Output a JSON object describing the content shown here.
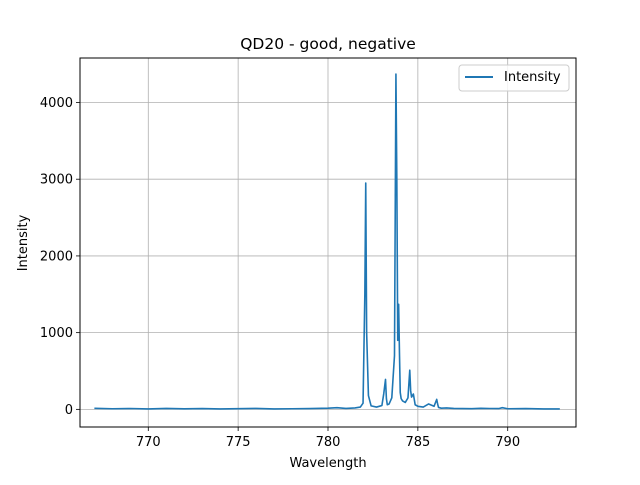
{
  "chart_data": {
    "type": "line",
    "title": "QD20 - good, negative",
    "xlabel": "Wavelength",
    "ylabel": "Intensity",
    "xlim": [
      766.2,
      793.8
    ],
    "ylim": [
      -230,
      4580
    ],
    "xticks": [
      770,
      775,
      780,
      785,
      790
    ],
    "yticks": [
      0,
      1000,
      2000,
      3000,
      4000
    ],
    "grid": true,
    "legend_position": "top-right",
    "series_color": "#1f77b4",
    "series": [
      {
        "name": "Intensity",
        "x": [
          767.0,
          768.0,
          769.0,
          770.0,
          771.0,
          772.0,
          773.0,
          774.0,
          775.0,
          776.0,
          777.0,
          778.0,
          779.0,
          780.0,
          780.5,
          781.0,
          781.5,
          781.8,
          781.95,
          782.05,
          782.1,
          782.15,
          782.25,
          782.4,
          782.7,
          783.0,
          783.1,
          783.2,
          783.25,
          783.3,
          783.4,
          783.55,
          783.7,
          783.78,
          783.83,
          783.88,
          783.93,
          783.98,
          784.02,
          784.07,
          784.15,
          784.3,
          784.45,
          784.55,
          784.6,
          784.65,
          784.75,
          784.85,
          785.0,
          785.3,
          785.6,
          785.9,
          786.05,
          786.1,
          786.15,
          786.3,
          786.6,
          787.0,
          787.5,
          788.0,
          788.5,
          789.0,
          789.5,
          789.7,
          790.0,
          791.0,
          792.0,
          792.9
        ],
        "values": [
          14,
          8,
          11,
          6,
          12,
          7,
          10,
          5,
          9,
          12,
          6,
          8,
          10,
          15,
          22,
          12,
          18,
          30,
          80,
          1500,
          2950,
          1000,
          180,
          45,
          30,
          50,
          200,
          390,
          140,
          60,
          70,
          150,
          700,
          4370,
          3000,
          900,
          1370,
          700,
          220,
          140,
          110,
          90,
          150,
          510,
          240,
          160,
          200,
          60,
          40,
          30,
          70,
          40,
          130,
          70,
          25,
          15,
          18,
          12,
          10,
          9,
          14,
          11,
          10,
          22,
          8,
          10,
          6,
          5
        ]
      }
    ]
  }
}
